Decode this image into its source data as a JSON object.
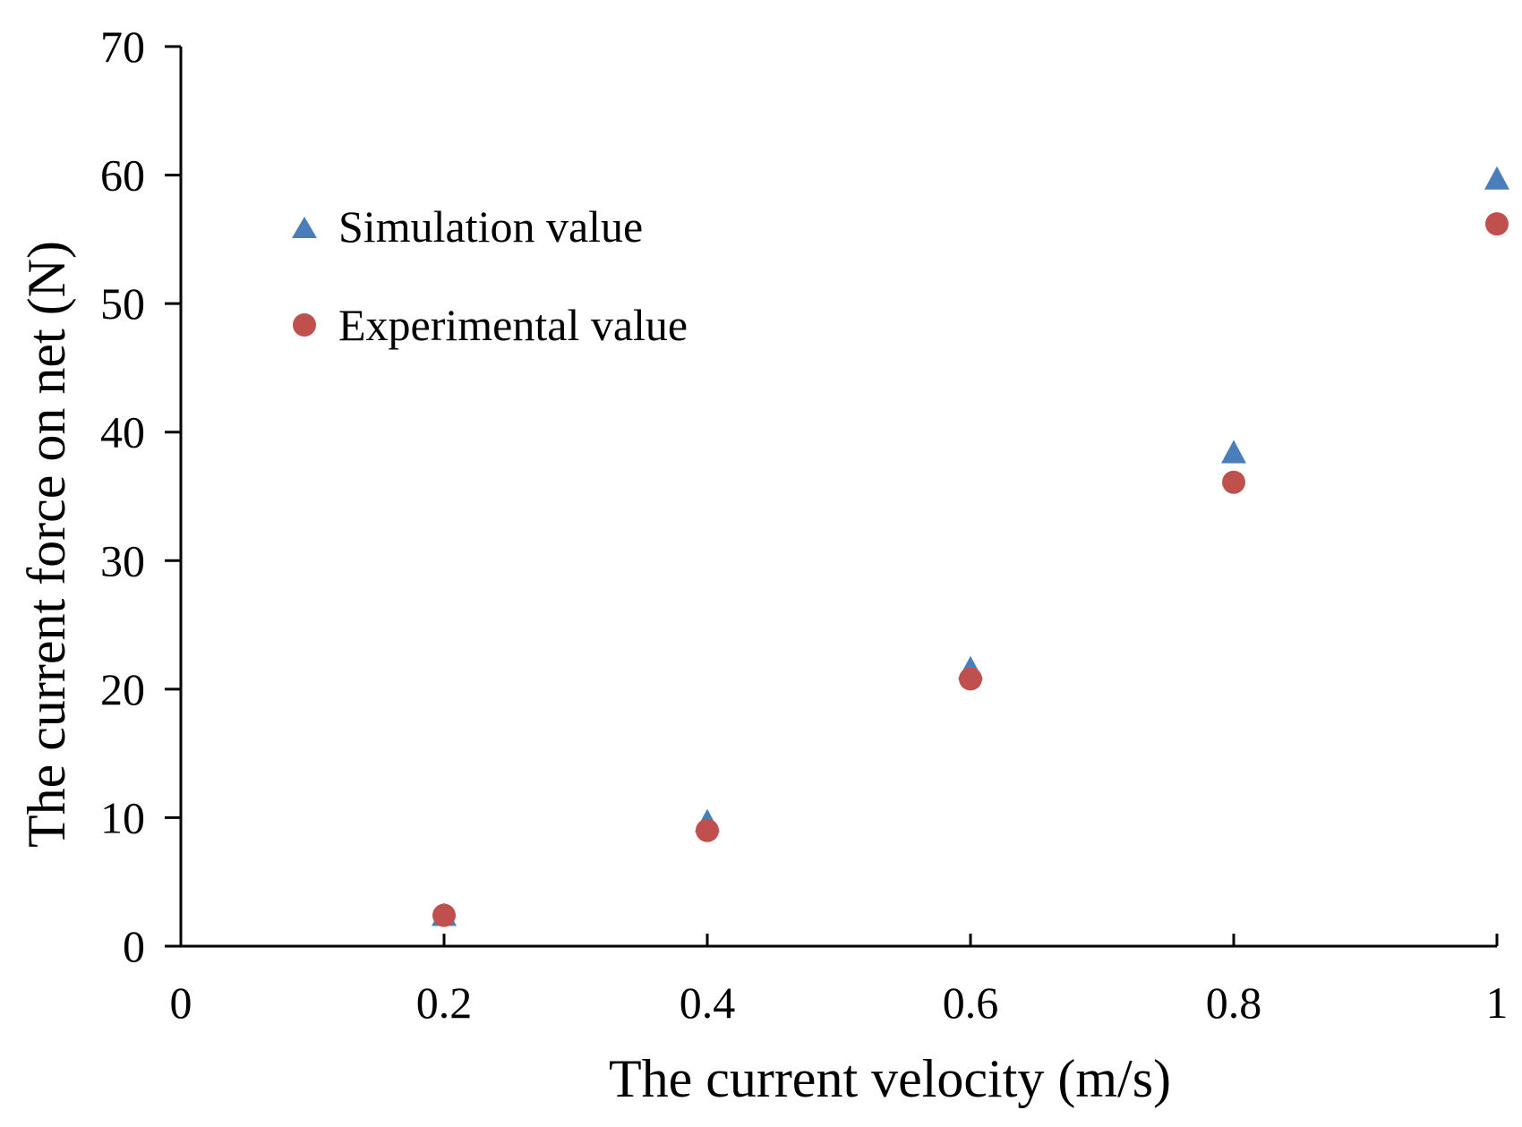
{
  "chart_data": {
    "type": "scatter",
    "xlabel": "The current velocity (m/s)",
    "ylabel": "The current force on net (N)",
    "xlim": [
      0,
      1
    ],
    "ylim": [
      0,
      70
    ],
    "x_ticks": [
      0,
      0.2,
      0.4,
      0.6,
      0.8,
      1
    ],
    "x_tick_labels": [
      "0",
      "0.2",
      "0.4",
      "0.6",
      "0.8",
      "1"
    ],
    "y_ticks": [
      0,
      10,
      20,
      30,
      40,
      50,
      60,
      70
    ],
    "y_tick_labels": [
      "0",
      "10",
      "20",
      "30",
      "40",
      "50",
      "60",
      "70"
    ],
    "grid": false,
    "legend_position": "upper-left",
    "series": [
      {
        "name": "Simulation value",
        "marker": "triangle",
        "color": "#4a7ebb",
        "x": [
          0.2,
          0.4,
          0.6,
          0.8,
          1.0
        ],
        "y": [
          2.3,
          9.6,
          21.5,
          38.3,
          59.6
        ]
      },
      {
        "name": "Experimental value",
        "marker": "circle",
        "color": "#c0504d",
        "x": [
          0.2,
          0.4,
          0.6,
          0.8,
          1.0
        ],
        "y": [
          2.4,
          9.0,
          20.8,
          36.1,
          56.2
        ]
      }
    ]
  }
}
